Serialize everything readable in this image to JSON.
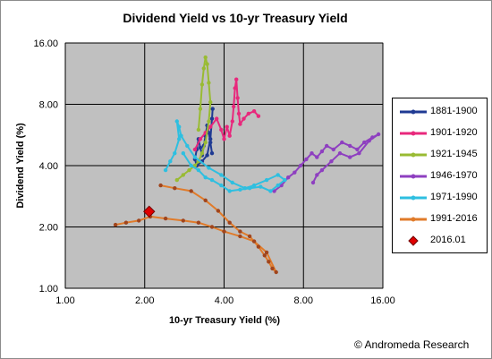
{
  "chart_data": {
    "type": "scatter",
    "title": "Dividend Yield vs 10-yr Treasury Yield",
    "xlabel": "10-yr Treasury Yield (%)",
    "ylabel": "Dividend Yield (%)",
    "x_scale": "log2",
    "y_scale": "log2",
    "xlim": [
      1,
      16
    ],
    "ylim": [
      1,
      16
    ],
    "x_ticks": [
      "1.00",
      "2.00",
      "4.00",
      "8.00",
      "16.00"
    ],
    "y_ticks": [
      "1.00",
      "2.00",
      "4.00",
      "8.00",
      "16.00"
    ],
    "grid": true,
    "legend_position": "right",
    "plot_background": "#c0c0c0",
    "series": [
      {
        "name": "1881-1900",
        "color": "#1f3a93",
        "marker": "line-dot",
        "points": [
          [
            3.6,
            4.6
          ],
          [
            3.55,
            5.2
          ],
          [
            3.5,
            5.8
          ],
          [
            3.45,
            6.3
          ],
          [
            3.4,
            5.6
          ],
          [
            3.35,
            5.0
          ],
          [
            3.3,
            4.5
          ],
          [
            3.25,
            4.9
          ],
          [
            3.2,
            5.4
          ],
          [
            3.15,
            4.8
          ],
          [
            3.1,
            4.3
          ],
          [
            3.15,
            4.0
          ],
          [
            3.3,
            4.2
          ],
          [
            3.45,
            4.5
          ],
          [
            3.55,
            5.4
          ],
          [
            3.6,
            6.8
          ],
          [
            3.62,
            7.6
          ]
        ]
      },
      {
        "name": "1901-1920",
        "color": "#e8287c",
        "marker": "line-dot",
        "points": [
          [
            3.1,
            4.8
          ],
          [
            3.25,
            5.4
          ],
          [
            3.4,
            5.8
          ],
          [
            3.55,
            6.2
          ],
          [
            3.75,
            6.8
          ],
          [
            3.9,
            6.0
          ],
          [
            4.0,
            5.4
          ],
          [
            4.1,
            6.2
          ],
          [
            4.2,
            5.6
          ],
          [
            4.3,
            6.6
          ],
          [
            4.35,
            7.8
          ],
          [
            4.4,
            9.6
          ],
          [
            4.45,
            10.6
          ],
          [
            4.5,
            8.6
          ],
          [
            4.55,
            7.2
          ],
          [
            4.6,
            6.4
          ],
          [
            4.75,
            6.8
          ],
          [
            4.95,
            7.2
          ],
          [
            5.2,
            7.4
          ],
          [
            5.4,
            7.0
          ]
        ]
      },
      {
        "name": "1921-1945",
        "color": "#99bb33",
        "marker": "line-dot",
        "points": [
          [
            3.2,
            6.0
          ],
          [
            3.25,
            7.6
          ],
          [
            3.3,
            10.0
          ],
          [
            3.35,
            12.0
          ],
          [
            3.4,
            13.6
          ],
          [
            3.45,
            12.6
          ],
          [
            3.5,
            10.2
          ],
          [
            3.55,
            8.2
          ],
          [
            3.5,
            6.6
          ],
          [
            3.4,
            5.2
          ],
          [
            3.3,
            4.6
          ],
          [
            3.2,
            4.2
          ],
          [
            3.1,
            4.0
          ],
          [
            2.95,
            3.8
          ],
          [
            2.8,
            3.6
          ],
          [
            2.65,
            3.4
          ]
        ]
      },
      {
        "name": "1946-1970",
        "color": "#8e3fc0",
        "marker": "line-dot",
        "points": [
          [
            6.2,
            3.0
          ],
          [
            6.6,
            3.2
          ],
          [
            7.0,
            3.5
          ],
          [
            7.4,
            3.7
          ],
          [
            7.8,
            4.0
          ],
          [
            8.2,
            4.3
          ],
          [
            8.6,
            4.6
          ],
          [
            9.0,
            4.4
          ],
          [
            9.4,
            4.7
          ],
          [
            9.8,
            5.0
          ],
          [
            10.4,
            4.8
          ],
          [
            11.2,
            5.2
          ],
          [
            12.0,
            5.0
          ],
          [
            12.8,
            4.8
          ],
          [
            13.6,
            5.2
          ],
          [
            14.6,
            5.5
          ],
          [
            15.4,
            5.7
          ],
          [
            14.2,
            5.3
          ],
          [
            13.0,
            4.6
          ],
          [
            12.0,
            4.4
          ],
          [
            11.0,
            4.6
          ],
          [
            10.2,
            4.2
          ],
          [
            9.4,
            3.8
          ],
          [
            9.0,
            3.6
          ],
          [
            8.7,
            3.3
          ]
        ]
      },
      {
        "name": "1971-1990",
        "color": "#2ebfe0",
        "marker": "line-dot",
        "points": [
          [
            2.8,
            4.6
          ],
          [
            3.0,
            4.0
          ],
          [
            3.2,
            3.8
          ],
          [
            3.4,
            3.5
          ],
          [
            3.6,
            3.4
          ],
          [
            3.9,
            3.2
          ],
          [
            4.2,
            3.0
          ],
          [
            4.6,
            3.05
          ],
          [
            5.0,
            3.1
          ],
          [
            5.5,
            3.15
          ],
          [
            6.0,
            3.0
          ],
          [
            6.4,
            3.2
          ],
          [
            6.8,
            3.4
          ],
          [
            6.4,
            3.6
          ],
          [
            5.8,
            3.4
          ],
          [
            5.2,
            3.2
          ],
          [
            4.8,
            3.1
          ],
          [
            4.3,
            3.3
          ],
          [
            3.9,
            3.6
          ],
          [
            3.5,
            3.9
          ],
          [
            3.1,
            4.4
          ],
          [
            2.9,
            5.0
          ],
          [
            2.75,
            5.6
          ],
          [
            2.7,
            6.2
          ],
          [
            2.65,
            6.6
          ],
          [
            2.7,
            5.4
          ],
          [
            2.6,
            4.6
          ],
          [
            2.5,
            4.2
          ],
          [
            2.4,
            3.8
          ]
        ]
      },
      {
        "name": "1991-2016",
        "color": "#e07b2a",
        "marker": "line-dot",
        "points": [
          [
            2.3,
            3.2
          ],
          [
            2.6,
            3.1
          ],
          [
            3.0,
            3.0
          ],
          [
            3.4,
            2.7
          ],
          [
            3.8,
            2.4
          ],
          [
            4.2,
            2.1
          ],
          [
            4.6,
            1.9
          ],
          [
            5.0,
            1.8
          ],
          [
            5.4,
            1.6
          ],
          [
            5.7,
            1.45
          ],
          [
            5.9,
            1.35
          ],
          [
            6.1,
            1.25
          ],
          [
            6.3,
            1.2
          ],
          [
            5.8,
            1.5
          ],
          [
            5.2,
            1.7
          ],
          [
            4.6,
            1.8
          ],
          [
            4.0,
            1.9
          ],
          [
            3.6,
            2.0
          ],
          [
            3.2,
            2.1
          ],
          [
            2.8,
            2.15
          ],
          [
            2.4,
            2.2
          ],
          [
            2.1,
            2.25
          ],
          [
            1.9,
            2.15
          ],
          [
            1.7,
            2.1
          ],
          [
            1.55,
            2.05
          ]
        ]
      },
      {
        "name": "2016.01",
        "color": "#e00000",
        "marker": "diamond",
        "points": [
          [
            2.08,
            2.38
          ]
        ]
      }
    ]
  },
  "credit": "© Andromeda Research"
}
